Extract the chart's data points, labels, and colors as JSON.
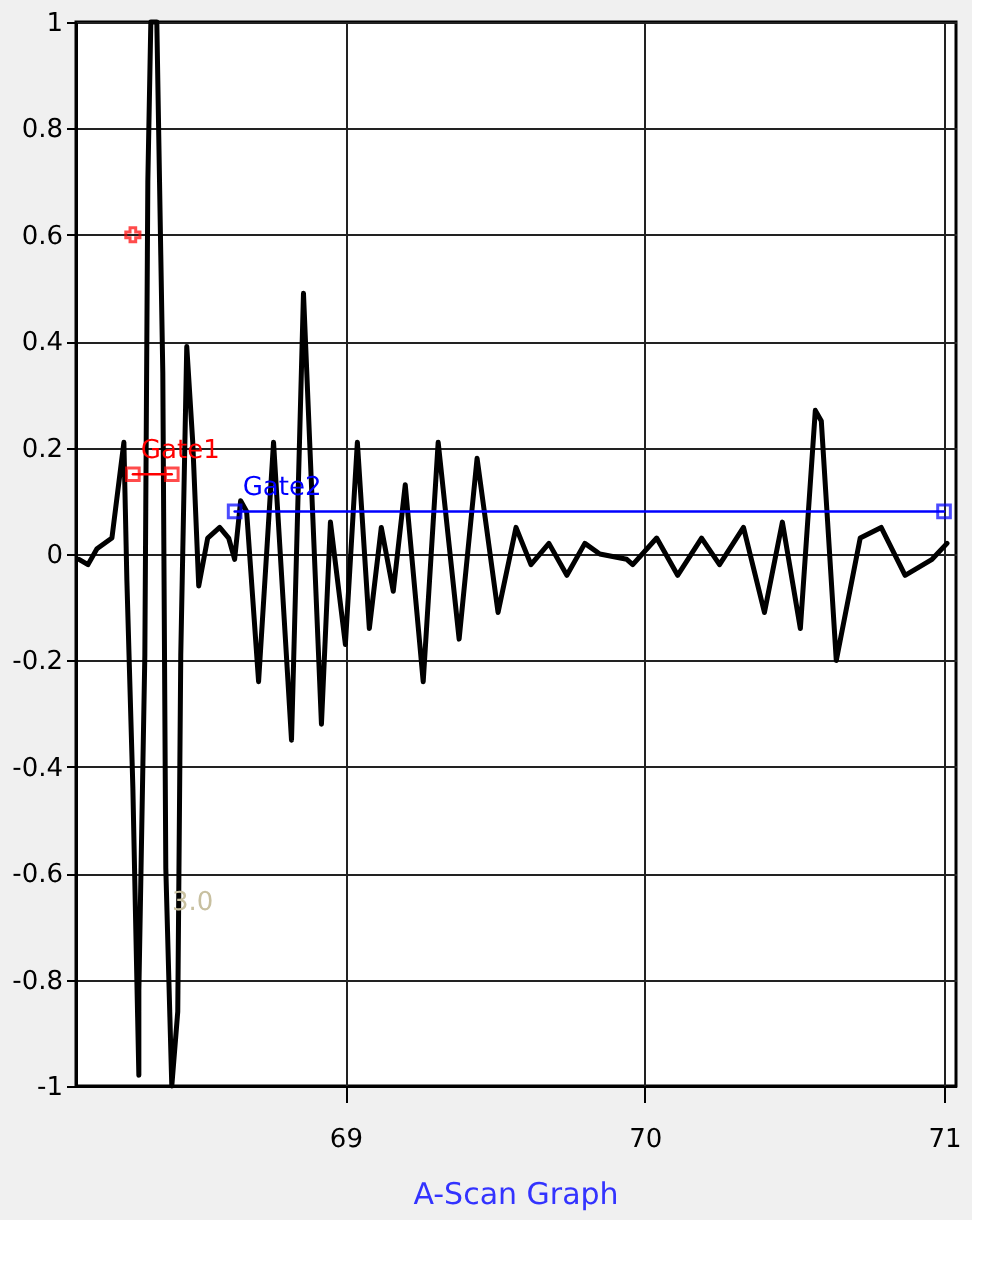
{
  "chart_data": {
    "type": "line",
    "title": "A-Scan Graph",
    "xlim": [
      68.1,
      71.04
    ],
    "xticks": [
      69,
      70,
      71
    ],
    "ylim": [
      -1,
      1
    ],
    "yticks": [
      -1,
      -0.8,
      -0.6,
      -0.4,
      -0.2,
      0,
      0.2,
      0.4,
      0.6,
      0.8,
      1
    ],
    "grid": true,
    "legend": false,
    "annotations": [
      "3.0"
    ],
    "series": [
      {
        "color": "#000000",
        "marker": "none",
        "x": [
          68.11,
          68.14,
          68.17,
          68.22,
          68.26,
          68.27,
          68.29,
          68.31,
          68.31,
          68.33,
          68.34,
          68.35,
          68.37,
          68.39,
          68.4,
          68.42,
          68.44,
          68.45,
          68.47,
          68.49,
          68.51,
          68.54,
          68.58,
          68.61,
          68.63,
          68.65,
          68.67,
          68.71,
          68.76,
          68.82,
          68.86,
          68.92,
          68.95,
          69.0,
          69.04,
          69.08,
          69.12,
          69.16,
          69.2,
          69.26,
          69.31,
          69.38,
          69.44,
          69.51,
          69.57,
          69.62,
          69.68,
          69.74,
          69.8,
          69.85,
          69.94,
          69.96,
          70.04,
          70.11,
          70.19,
          70.25,
          70.33,
          70.4,
          70.46,
          70.52,
          70.57,
          70.59,
          70.64,
          70.72,
          70.79,
          70.87,
          70.96,
          71.01
        ],
        "values": [
          -0.01,
          -0.02,
          0.01,
          0.03,
          0.21,
          -0.05,
          -0.44,
          -0.98,
          -0.82,
          -0.19,
          0.7,
          1.0,
          1.0,
          0.34,
          -0.59,
          -1.0,
          -0.86,
          -0.19,
          0.39,
          0.21,
          -0.06,
          0.03,
          0.05,
          0.03,
          -0.01,
          0.1,
          0.08,
          -0.24,
          0.21,
          -0.35,
          0.49,
          -0.32,
          0.06,
          -0.17,
          0.21,
          -0.14,
          0.05,
          -0.07,
          0.13,
          -0.24,
          0.21,
          -0.16,
          0.18,
          -0.11,
          0.05,
          -0.02,
          0.02,
          -0.04,
          0.02,
          0.0,
          -0.01,
          -0.02,
          0.03,
          -0.04,
          0.03,
          -0.02,
          0.05,
          -0.11,
          0.06,
          -0.14,
          0.27,
          0.25,
          -0.2,
          0.03,
          0.05,
          -0.04,
          -0.01,
          0.02
        ]
      },
      {
        "name": "Gate1",
        "color": "#ff0000",
        "marker": "square",
        "x": [
          68.29,
          68.42
        ],
        "values": [
          0.15,
          0.15
        ]
      },
      {
        "name": "Gate2",
        "color": "#0000ff",
        "marker": "square",
        "x": [
          68.63,
          71.0
        ],
        "values": [
          0.08,
          0.08
        ]
      },
      {
        "type": "scatter",
        "color": "#ff0000",
        "marker": "cross",
        "x": [
          68.29
        ],
        "values": [
          0.6
        ]
      }
    ]
  }
}
